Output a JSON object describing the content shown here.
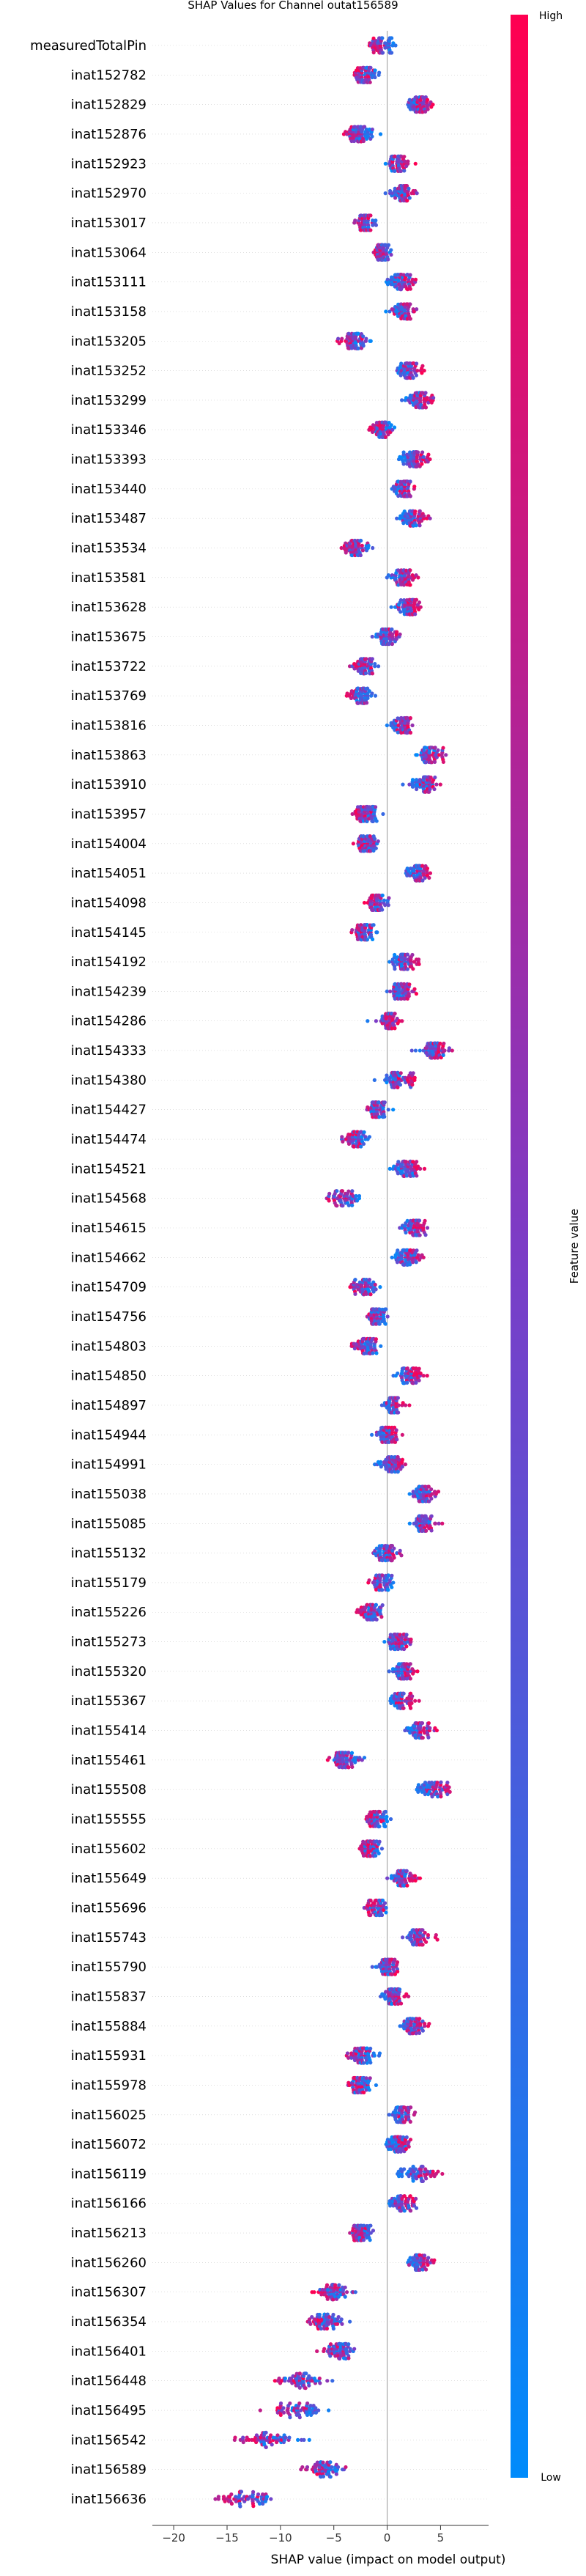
{
  "chart_data": {
    "type": "scatter",
    "subtype": "shap-beeswarm",
    "title": "SHAP Values for Channel outat156589",
    "xlabel": "SHAP value (impact on model output)",
    "xlim": [
      -22,
      9.5
    ],
    "xticks": [
      -20,
      -15,
      -10,
      -5,
      0,
      5
    ],
    "colorbar": {
      "label": "Feature value",
      "high_label": "High",
      "low_label": "Low",
      "low_color": "#008bfb",
      "mid_color": "#7c3cc6",
      "high_color": "#ff0051"
    },
    "features": [
      {
        "name": "measuredTotalPin",
        "center": -0.5,
        "spread": 2.2,
        "tilt": 0.6
      },
      {
        "name": "inat152782",
        "center": -2.2,
        "spread": 2.2,
        "tilt": 0.4
      },
      {
        "name": "inat152829",
        "center": 3.0,
        "spread": 2.0,
        "tilt": 0.6
      },
      {
        "name": "inat152876",
        "center": -2.5,
        "spread": 2.5,
        "tilt": 0.4
      },
      {
        "name": "inat152923",
        "center": 1.0,
        "spread": 2.0,
        "tilt": 0.6
      },
      {
        "name": "inat152970",
        "center": 1.5,
        "spread": 2.0,
        "tilt": 0.6
      },
      {
        "name": "inat153017",
        "center": -2.0,
        "spread": 2.0,
        "tilt": 0.4
      },
      {
        "name": "inat153064",
        "center": -0.5,
        "spread": 1.5,
        "tilt": 0.5
      },
      {
        "name": "inat153111",
        "center": 1.5,
        "spread": 2.2,
        "tilt": 0.6
      },
      {
        "name": "inat153158",
        "center": 1.5,
        "spread": 2.0,
        "tilt": 0.6
      },
      {
        "name": "inat153205",
        "center": -3.0,
        "spread": 2.5,
        "tilt": 0.4
      },
      {
        "name": "inat153252",
        "center": 2.0,
        "spread": 2.0,
        "tilt": 0.6
      },
      {
        "name": "inat153299",
        "center": 3.0,
        "spread": 2.0,
        "tilt": 0.6
      },
      {
        "name": "inat153346",
        "center": -0.5,
        "spread": 2.0,
        "tilt": 0.4
      },
      {
        "name": "inat153393",
        "center": 2.5,
        "spread": 2.0,
        "tilt": 0.6
      },
      {
        "name": "inat153440",
        "center": 1.5,
        "spread": 1.8,
        "tilt": 0.6
      },
      {
        "name": "inat153487",
        "center": 2.5,
        "spread": 2.0,
        "tilt": 0.6
      },
      {
        "name": "inat153534",
        "center": -3.0,
        "spread": 2.5,
        "tilt": 0.4
      },
      {
        "name": "inat153581",
        "center": 1.5,
        "spread": 2.0,
        "tilt": 0.6
      },
      {
        "name": "inat153628",
        "center": 2.0,
        "spread": 2.0,
        "tilt": 0.6
      },
      {
        "name": "inat153675",
        "center": 0.0,
        "spread": 1.8,
        "tilt": 0.5
      },
      {
        "name": "inat153722",
        "center": -2.0,
        "spread": 2.0,
        "tilt": 0.4
      },
      {
        "name": "inat153769",
        "center": -2.5,
        "spread": 2.0,
        "tilt": 0.4
      },
      {
        "name": "inat153816",
        "center": 1.5,
        "spread": 1.8,
        "tilt": 0.6
      },
      {
        "name": "inat153863",
        "center": 4.0,
        "spread": 2.0,
        "tilt": 0.6
      },
      {
        "name": "inat153910",
        "center": 3.5,
        "spread": 2.2,
        "tilt": 0.6
      },
      {
        "name": "inat153957",
        "center": -2.0,
        "spread": 2.0,
        "tilt": 0.4
      },
      {
        "name": "inat154004",
        "center": -2.0,
        "spread": 2.0,
        "tilt": 0.4
      },
      {
        "name": "inat154051",
        "center": 3.0,
        "spread": 2.0,
        "tilt": 0.6
      },
      {
        "name": "inat154098",
        "center": -1.0,
        "spread": 1.8,
        "tilt": 0.4
      },
      {
        "name": "inat154145",
        "center": -2.0,
        "spread": 2.0,
        "tilt": 0.4
      },
      {
        "name": "inat154192",
        "center": 1.5,
        "spread": 2.0,
        "tilt": 0.6
      },
      {
        "name": "inat154239",
        "center": 1.5,
        "spread": 2.0,
        "tilt": 0.6
      },
      {
        "name": "inat154286",
        "center": 0.0,
        "spread": 2.0,
        "tilt": 0.5
      },
      {
        "name": "inat154333",
        "center": 4.5,
        "spread": 3.0,
        "tilt": 0.6
      },
      {
        "name": "inat154380",
        "center": 1.0,
        "spread": 2.5,
        "tilt": 0.6
      },
      {
        "name": "inat154427",
        "center": -1.0,
        "spread": 2.0,
        "tilt": 0.4
      },
      {
        "name": "inat154474",
        "center": -3.0,
        "spread": 2.0,
        "tilt": 0.4
      },
      {
        "name": "inat154521",
        "center": 2.0,
        "spread": 2.0,
        "tilt": 0.6
      },
      {
        "name": "inat154568",
        "center": -4.0,
        "spread": 2.5,
        "tilt": 0.4
      },
      {
        "name": "inat154615",
        "center": 2.5,
        "spread": 2.0,
        "tilt": 0.6
      },
      {
        "name": "inat154662",
        "center": 2.0,
        "spread": 2.0,
        "tilt": 0.6
      },
      {
        "name": "inat154709",
        "center": -2.0,
        "spread": 2.2,
        "tilt": 0.4
      },
      {
        "name": "inat154756",
        "center": -1.0,
        "spread": 1.8,
        "tilt": 0.4
      },
      {
        "name": "inat154803",
        "center": -2.0,
        "spread": 2.0,
        "tilt": 0.4
      },
      {
        "name": "inat154850",
        "center": 2.0,
        "spread": 2.0,
        "tilt": 0.6
      },
      {
        "name": "inat154897",
        "center": 0.5,
        "spread": 1.8,
        "tilt": 0.5
      },
      {
        "name": "inat154944",
        "center": 0.0,
        "spread": 2.0,
        "tilt": 0.5
      },
      {
        "name": "inat154991",
        "center": 0.5,
        "spread": 2.2,
        "tilt": 0.5
      },
      {
        "name": "inat155038",
        "center": 3.5,
        "spread": 2.0,
        "tilt": 0.6
      },
      {
        "name": "inat155085",
        "center": 3.5,
        "spread": 2.2,
        "tilt": 0.6
      },
      {
        "name": "inat155132",
        "center": 0.0,
        "spread": 2.2,
        "tilt": 0.5
      },
      {
        "name": "inat155179",
        "center": -0.5,
        "spread": 1.8,
        "tilt": 0.4
      },
      {
        "name": "inat155226",
        "center": -1.5,
        "spread": 2.0,
        "tilt": 0.4
      },
      {
        "name": "inat155273",
        "center": 1.0,
        "spread": 2.0,
        "tilt": 0.6
      },
      {
        "name": "inat155320",
        "center": 1.5,
        "spread": 1.8,
        "tilt": 0.6
      },
      {
        "name": "inat155367",
        "center": 1.5,
        "spread": 2.0,
        "tilt": 0.6
      },
      {
        "name": "inat155414",
        "center": 3.0,
        "spread": 2.2,
        "tilt": 0.6
      },
      {
        "name": "inat155461",
        "center": -4.0,
        "spread": 2.5,
        "tilt": 0.4
      },
      {
        "name": "inat155508",
        "center": 4.5,
        "spread": 2.5,
        "tilt": 0.6
      },
      {
        "name": "inat155555",
        "center": -1.0,
        "spread": 1.8,
        "tilt": 0.4
      },
      {
        "name": "inat155602",
        "center": -1.5,
        "spread": 2.0,
        "tilt": 0.4
      },
      {
        "name": "inat155649",
        "center": 1.5,
        "spread": 2.0,
        "tilt": 0.6
      },
      {
        "name": "inat155696",
        "center": -1.0,
        "spread": 1.8,
        "tilt": 0.4
      },
      {
        "name": "inat155743",
        "center": 3.0,
        "spread": 2.0,
        "tilt": 0.6
      },
      {
        "name": "inat155790",
        "center": 0.0,
        "spread": 2.0,
        "tilt": 0.5
      },
      {
        "name": "inat155837",
        "center": 0.5,
        "spread": 1.8,
        "tilt": 0.5
      },
      {
        "name": "inat155884",
        "center": 2.5,
        "spread": 2.0,
        "tilt": 0.6
      },
      {
        "name": "inat155931",
        "center": -2.5,
        "spread": 2.2,
        "tilt": 0.4
      },
      {
        "name": "inat155978",
        "center": -2.5,
        "spread": 2.0,
        "tilt": 0.4
      },
      {
        "name": "inat156025",
        "center": 1.5,
        "spread": 1.8,
        "tilt": 0.6
      },
      {
        "name": "inat156072",
        "center": 1.0,
        "spread": 1.8,
        "tilt": 0.6
      },
      {
        "name": "inat156119",
        "center": 3.0,
        "spread": 3.0,
        "tilt": 0.6
      },
      {
        "name": "inat156166",
        "center": 1.5,
        "spread": 2.0,
        "tilt": 0.6
      },
      {
        "name": "inat156213",
        "center": -2.5,
        "spread": 2.0,
        "tilt": 0.4
      },
      {
        "name": "inat156260",
        "center": 3.0,
        "spread": 2.0,
        "tilt": 0.6
      },
      {
        "name": "inat156307",
        "center": -5.0,
        "spread": 2.8,
        "tilt": 0.4
      },
      {
        "name": "inat156354",
        "center": -6.0,
        "spread": 3.5,
        "tilt": 0.4
      },
      {
        "name": "inat156401",
        "center": -4.5,
        "spread": 2.5,
        "tilt": 0.4
      },
      {
        "name": "inat156448",
        "center": -8.0,
        "spread": 4.0,
        "tilt": 0.4
      },
      {
        "name": "inat156495",
        "center": -8.5,
        "spread": 4.2,
        "tilt": 0.4
      },
      {
        "name": "inat156542",
        "center": -11.0,
        "spread": 5.5,
        "tilt": 0.4
      },
      {
        "name": "inat156589",
        "center": -6.0,
        "spread": 3.5,
        "tilt": 0.4
      },
      {
        "name": "inat156636",
        "center": -13.0,
        "spread": 4.8,
        "tilt": 0.4
      }
    ]
  }
}
